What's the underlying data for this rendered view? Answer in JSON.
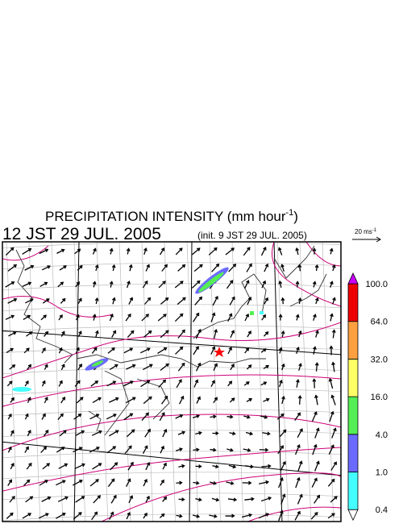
{
  "title": "PRECIPITATION INTENSITY (mm hour",
  "title_sup": "-1",
  "title_end": ")",
  "time": "12 JST 29 JUL. 2005",
  "init": "(init. 9 JST 29 JUL. 2005)",
  "vector_scale": {
    "label": "20 ms",
    "sup": "-1"
  },
  "colorbar": {
    "levels": [
      "0.4",
      "1.0",
      "4.0",
      "16.0",
      "32.0",
      "64.0",
      "100.0"
    ],
    "colors": [
      "#ffffff",
      "#44ffff",
      "#6a6aff",
      "#55ee55",
      "#ffff66",
      "#ffa040",
      "#ee0000",
      "#cc00ff"
    ]
  }
}
